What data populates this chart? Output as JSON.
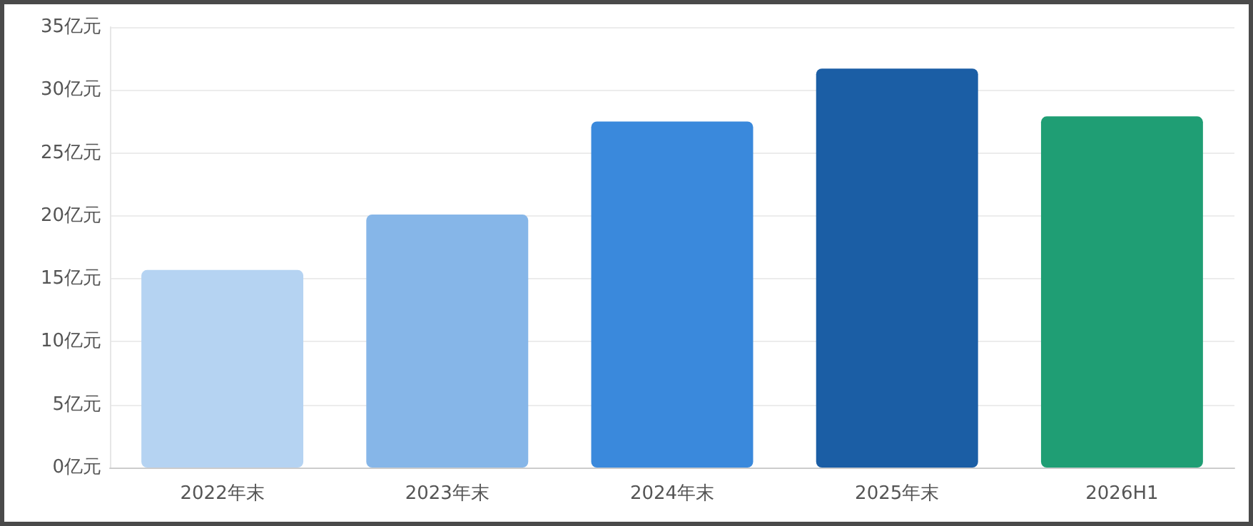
{
  "chart_data": {
    "type": "bar",
    "categories": [
      "2022年末",
      "2023年末",
      "2024年末",
      "2025年末",
      "2026H1"
    ],
    "values": [
      15.7,
      20.1,
      27.5,
      31.7,
      27.9
    ],
    "colors": [
      "#b5d3f2",
      "#86b6e8",
      "#3a89dc",
      "#1b5ea5",
      "#1f9e74"
    ],
    "ylim": [
      0,
      35
    ],
    "yticks": [
      {
        "value": 0,
        "label": "0亿元"
      },
      {
        "value": 5,
        "label": "5亿元"
      },
      {
        "value": 10,
        "label": "10亿元"
      },
      {
        "value": 15,
        "label": "15亿元"
      },
      {
        "value": 20,
        "label": "20亿元"
      },
      {
        "value": 25,
        "label": "25亿元"
      },
      {
        "value": 30,
        "label": "30亿元"
      },
      {
        "value": 35,
        "label": "35亿元"
      }
    ],
    "grid": "y"
  }
}
